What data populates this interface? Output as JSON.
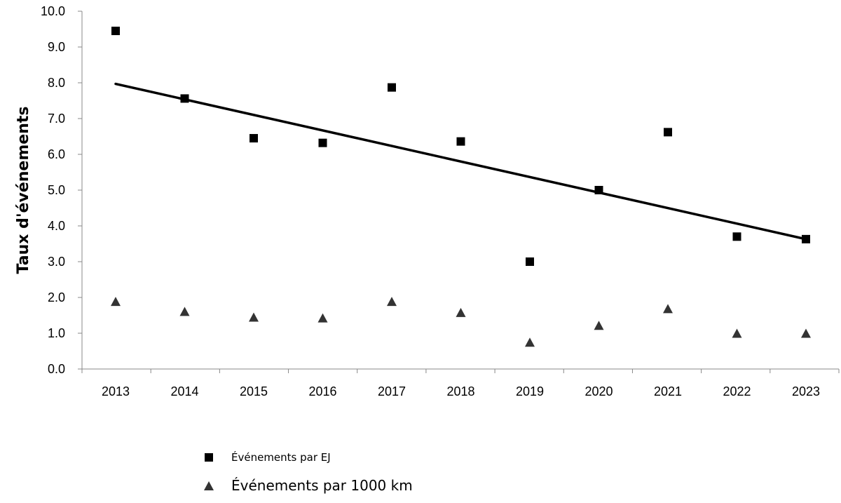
{
  "chart_data": {
    "type": "scatter",
    "title": "",
    "xlabel": "",
    "ylabel": "Taux d'événements",
    "categories": [
      "2013",
      "2014",
      "2015",
      "2016",
      "2017",
      "2018",
      "2019",
      "2020",
      "2021",
      "2022",
      "2023"
    ],
    "ylim": [
      0,
      10
    ],
    "y_ticks": [
      "0.0",
      "1.0",
      "2.0",
      "3.0",
      "4.0",
      "5.0",
      "6.0",
      "7.0",
      "8.0",
      "9.0",
      "10.0"
    ],
    "series": [
      {
        "name": "Événements par EJ",
        "marker": "square",
        "color": "#000000",
        "values": [
          9.45,
          7.56,
          6.45,
          6.32,
          7.87,
          6.36,
          3.0,
          5.0,
          6.62,
          3.7,
          3.63
        ]
      },
      {
        "name": "Événements par 1000 km",
        "marker": "triangle",
        "color": "#333333",
        "values": [
          1.88,
          1.6,
          1.44,
          1.42,
          1.88,
          1.57,
          0.74,
          1.21,
          1.68,
          0.99,
          0.99
        ]
      }
    ],
    "trendline": {
      "series": "Événements par EJ",
      "type": "linear",
      "start": {
        "x": "2013",
        "y": 7.97
      },
      "end": {
        "x": "2023",
        "y": 3.63
      }
    },
    "grid": false,
    "legend_position": "bottom-left"
  }
}
